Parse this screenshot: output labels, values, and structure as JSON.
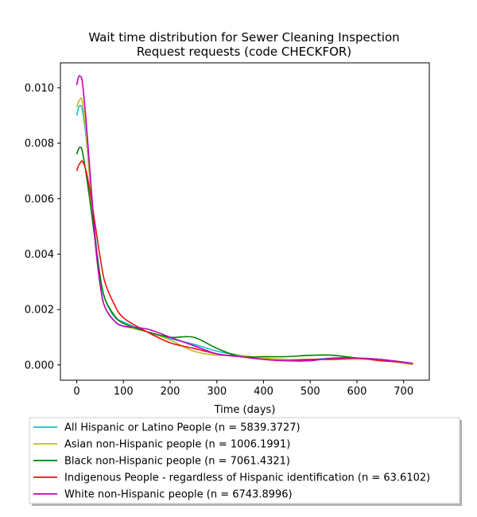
{
  "chart_data": {
    "type": "line",
    "title": [
      "Wait time distribution  for Sewer Cleaning Inspection",
      "Request  requests (code CHECKFOR)"
    ],
    "xlabel": "Time (days)",
    "ylabel": "",
    "xlim": [
      -35,
      755
    ],
    "ylim": [
      -0.00055,
      0.0109
    ],
    "x_ticks": [
      0,
      100,
      200,
      300,
      400,
      500,
      600,
      700
    ],
    "x_tick_labels": [
      "0",
      "100",
      "200",
      "300",
      "400",
      "500",
      "600",
      "700"
    ],
    "y_ticks": [
      0.0,
      0.002,
      0.004,
      0.006,
      0.008,
      0.01
    ],
    "y_tick_labels": [
      "0.000",
      "0.002",
      "0.004",
      "0.006",
      "0.008",
      "0.010"
    ],
    "grid": false,
    "legend_position": "below",
    "series": [
      {
        "name": "All Hispanic or Latino People (n = 5839.3727)",
        "color": "#17becf",
        "points": [
          [
            0,
            0.009
          ],
          [
            4,
            0.0093
          ],
          [
            8,
            0.00935
          ],
          [
            12,
            0.0092
          ],
          [
            20,
            0.0082
          ],
          [
            30,
            0.0064
          ],
          [
            40,
            0.0046
          ],
          [
            50,
            0.0032
          ],
          [
            60,
            0.0024
          ],
          [
            80,
            0.00175
          ],
          [
            100,
            0.00155
          ],
          [
            150,
            0.0012
          ],
          [
            200,
            0.00095
          ],
          [
            250,
            0.00075
          ],
          [
            300,
            0.0005
          ],
          [
            350,
            0.00035
          ],
          [
            400,
            0.00025
          ],
          [
            450,
            0.0002
          ],
          [
            500,
            0.0002
          ],
          [
            550,
            0.00025
          ],
          [
            600,
            0.00025
          ],
          [
            650,
            0.0002
          ],
          [
            700,
            0.0001
          ],
          [
            720,
            5e-05
          ]
        ]
      },
      {
        "name": "Asian non-Hispanic people (n = 1006.1991)",
        "color": "#bcbd22",
        "points": [
          [
            0,
            0.0093
          ],
          [
            4,
            0.0095
          ],
          [
            8,
            0.0096
          ],
          [
            12,
            0.0095
          ],
          [
            20,
            0.0083
          ],
          [
            30,
            0.0062
          ],
          [
            40,
            0.0043
          ],
          [
            50,
            0.0029
          ],
          [
            60,
            0.0021
          ],
          [
            80,
            0.0016
          ],
          [
            100,
            0.0014
          ],
          [
            150,
            0.0012
          ],
          [
            200,
            0.0009
          ],
          [
            250,
            0.0005
          ],
          [
            300,
            0.00035
          ],
          [
            350,
            0.00035
          ],
          [
            400,
            0.00025
          ],
          [
            450,
            0.0002
          ],
          [
            500,
            0.0002
          ],
          [
            550,
            0.0002
          ],
          [
            600,
            0.0002
          ],
          [
            650,
            0.0002
          ],
          [
            700,
            5e-05
          ],
          [
            720,
            2e-05
          ]
        ]
      },
      {
        "name": "Black non-Hispanic people (n = 7061.4321)",
        "color": "#008000",
        "points": [
          [
            0,
            0.0076
          ],
          [
            4,
            0.0078
          ],
          [
            8,
            0.00785
          ],
          [
            12,
            0.0077
          ],
          [
            20,
            0.0069
          ],
          [
            30,
            0.0057
          ],
          [
            40,
            0.0044
          ],
          [
            50,
            0.0032
          ],
          [
            60,
            0.0024
          ],
          [
            80,
            0.0018
          ],
          [
            100,
            0.0015
          ],
          [
            150,
            0.0012
          ],
          [
            200,
            0.001
          ],
          [
            250,
            0.001
          ],
          [
            300,
            0.0006
          ],
          [
            350,
            0.0003
          ],
          [
            400,
            0.0003
          ],
          [
            450,
            0.0003
          ],
          [
            500,
            0.00035
          ],
          [
            550,
            0.00035
          ],
          [
            600,
            0.00025
          ],
          [
            650,
            0.0002
          ],
          [
            700,
            0.0001
          ],
          [
            720,
            5e-05
          ]
        ]
      },
      {
        "name": "Indigenous People - regardless of Hispanic identification (n = 63.6102)",
        "color": "#ee1111",
        "points": [
          [
            0,
            0.007
          ],
          [
            4,
            0.0072
          ],
          [
            8,
            0.0073
          ],
          [
            12,
            0.00735
          ],
          [
            20,
            0.007
          ],
          [
            30,
            0.0061
          ],
          [
            40,
            0.005
          ],
          [
            50,
            0.0039
          ],
          [
            60,
            0.003
          ],
          [
            80,
            0.0022
          ],
          [
            100,
            0.0017
          ],
          [
            150,
            0.0012
          ],
          [
            200,
            0.0008
          ],
          [
            250,
            0.0006
          ],
          [
            300,
            0.0004
          ],
          [
            350,
            0.0003
          ],
          [
            400,
            0.0002
          ],
          [
            450,
            0.00015
          ],
          [
            500,
            0.0002
          ],
          [
            550,
            0.0002
          ],
          [
            600,
            0.00025
          ],
          [
            650,
            0.00015
          ],
          [
            700,
            0.0001
          ],
          [
            720,
            5e-05
          ]
        ]
      },
      {
        "name": "White non-Hispanic people (n = 6743.8996)",
        "color": "#c000c0",
        "points": [
          [
            0,
            0.0101
          ],
          [
            4,
            0.0104
          ],
          [
            8,
            0.0104
          ],
          [
            12,
            0.0102
          ],
          [
            20,
            0.0088
          ],
          [
            30,
            0.0066
          ],
          [
            40,
            0.0044
          ],
          [
            50,
            0.0029
          ],
          [
            60,
            0.0021
          ],
          [
            80,
            0.0016
          ],
          [
            100,
            0.0014
          ],
          [
            150,
            0.0013
          ],
          [
            200,
            0.001
          ],
          [
            250,
            0.0007
          ],
          [
            300,
            0.0004
          ],
          [
            350,
            0.0003
          ],
          [
            400,
            0.0002
          ],
          [
            450,
            0.00015
          ],
          [
            500,
            0.00015
          ],
          [
            550,
            0.00025
          ],
          [
            600,
            0.00025
          ],
          [
            650,
            0.0002
          ],
          [
            700,
            0.0001
          ],
          [
            720,
            5e-05
          ]
        ]
      }
    ]
  }
}
